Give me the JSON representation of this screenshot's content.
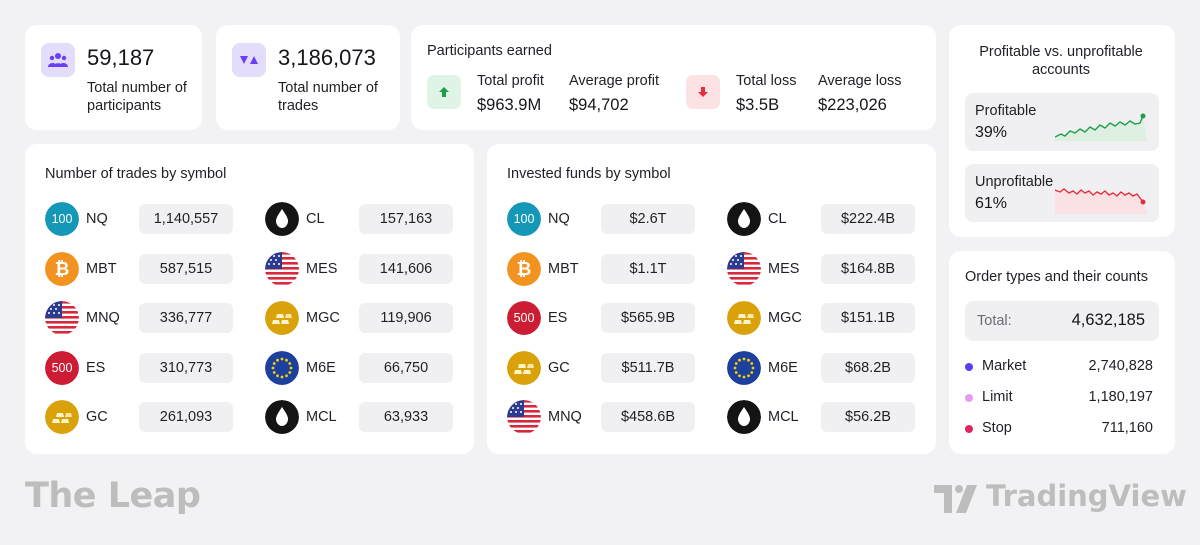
{
  "stats": {
    "participants": {
      "value": "59,187",
      "label": "Total number of participants"
    },
    "trades": {
      "value": "3,186,073",
      "label": "Total number of trades"
    }
  },
  "earned": {
    "title": "Participants earned",
    "total_profit_label": "Total profit",
    "total_profit": "$963.9M",
    "average_profit_label": "Average profit",
    "average_profit": "$94,702",
    "total_loss_label": "Total loss",
    "total_loss": "$3.5B",
    "average_loss_label": "Average loss",
    "average_loss": "$223,026"
  },
  "accounts": {
    "title": "Profitable vs. unprofitable accounts",
    "profitable_label": "Profitable",
    "profitable_pct": "39%",
    "unprofitable_label": "Unprofitable",
    "unprofitable_pct": "61%"
  },
  "trades_by_symbol": {
    "title": "Number of trades by symbol",
    "left": [
      {
        "symbol": "NQ",
        "value": "1,140,557",
        "icon": "nq-100-icon"
      },
      {
        "symbol": "MBT",
        "value": "587,515",
        "icon": "bitcoin-icon"
      },
      {
        "symbol": "MNQ",
        "value": "336,777",
        "icon": "us-flag-icon"
      },
      {
        "symbol": "ES",
        "value": "310,773",
        "icon": "sp-500-icon"
      },
      {
        "symbol": "GC",
        "value": "261,093",
        "icon": "gold-bars-icon"
      }
    ],
    "right": [
      {
        "symbol": "CL",
        "value": "157,163",
        "icon": "oil-drop-icon"
      },
      {
        "symbol": "MES",
        "value": "141,606",
        "icon": "us-flag-icon"
      },
      {
        "symbol": "MGC",
        "value": "119,906",
        "icon": "gold-bars-icon"
      },
      {
        "symbol": "M6E",
        "value": "66,750",
        "icon": "eu-flag-icon"
      },
      {
        "symbol": "MCL",
        "value": "63,933",
        "icon": "oil-drop-icon"
      }
    ]
  },
  "funds_by_symbol": {
    "title": "Invested funds by symbol",
    "left": [
      {
        "symbol": "NQ",
        "value": "$2.6T",
        "icon": "nq-100-icon"
      },
      {
        "symbol": "MBT",
        "value": "$1.1T",
        "icon": "bitcoin-icon"
      },
      {
        "symbol": "ES",
        "value": "$565.9B",
        "icon": "sp-500-icon"
      },
      {
        "symbol": "GC",
        "value": "$511.7B",
        "icon": "gold-bars-icon"
      },
      {
        "symbol": "MNQ",
        "value": "$458.6B",
        "icon": "us-flag-icon"
      }
    ],
    "right": [
      {
        "symbol": "CL",
        "value": "$222.4B",
        "icon": "oil-drop-icon"
      },
      {
        "symbol": "MES",
        "value": "$164.8B",
        "icon": "us-flag-icon"
      },
      {
        "symbol": "MGC",
        "value": "$151.1B",
        "icon": "gold-bars-icon"
      },
      {
        "symbol": "M6E",
        "value": "$68.2B",
        "icon": "eu-flag-icon"
      },
      {
        "symbol": "MCL",
        "value": "$56.2B",
        "icon": "oil-drop-icon"
      }
    ]
  },
  "order_types": {
    "title": "Order types and their counts",
    "total_label": "Total:",
    "total": "4,632,185",
    "items": [
      {
        "label": "Market",
        "count": "2,740,828",
        "color": "#5b3df5"
      },
      {
        "label": "Limit",
        "count": "1,180,197",
        "color": "#e59cf0"
      },
      {
        "label": "Stop",
        "count": "711,160",
        "color": "#e0245e"
      }
    ]
  },
  "brand": {
    "left_logo": "The Leap",
    "right_logo": "TradingView"
  },
  "colors": {
    "accent_purple": "#6a3ff5",
    "profit_green": "#1f9e4a",
    "loss_red": "#e0303e"
  }
}
